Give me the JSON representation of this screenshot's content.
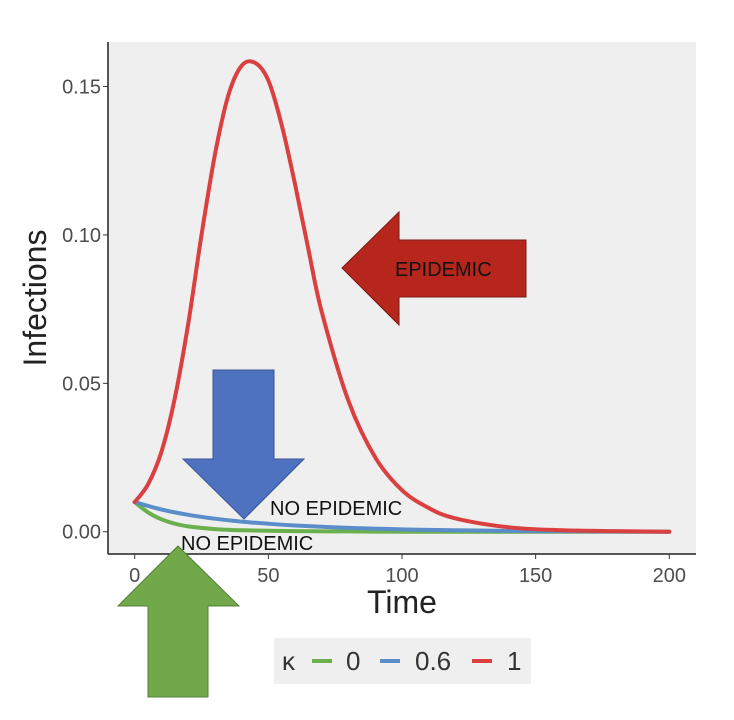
{
  "chart_data": {
    "type": "line",
    "title": "",
    "xlabel": "Time",
    "ylabel": "Infections",
    "xlim": [
      -10,
      210
    ],
    "ylim": [
      -0.0075,
      0.165
    ],
    "x_ticks": [
      0,
      50,
      100,
      150,
      200
    ],
    "x_tick_labels": [
      "0",
      "50",
      "100",
      "150",
      "200"
    ],
    "y_ticks": [
      0.0,
      0.05,
      0.1,
      0.15
    ],
    "y_tick_labels": [
      "0.00",
      "0.05",
      "0.10",
      "0.15"
    ],
    "grid": false,
    "legend": {
      "title": "κ",
      "position": "bottom"
    },
    "series": [
      {
        "name": "0",
        "color": "#6ab04c",
        "x": [
          0,
          5,
          10,
          15,
          20,
          30,
          40,
          60,
          80,
          100,
          150,
          200
        ],
        "y": [
          0.01,
          0.0065,
          0.0042,
          0.0027,
          0.0018,
          0.0009,
          0.0005,
          0.0002,
          0.0001,
          0.0,
          0.0,
          0.0
        ]
      },
      {
        "name": "0.6",
        "color": "#5b8ec9",
        "x": [
          0,
          10,
          20,
          30,
          40,
          50,
          60,
          80,
          100,
          120,
          150,
          200
        ],
        "y": [
          0.01,
          0.0075,
          0.0057,
          0.0044,
          0.0034,
          0.0027,
          0.0021,
          0.0013,
          0.0008,
          0.0005,
          0.0002,
          0.0
        ]
      },
      {
        "name": "1",
        "color": "#d9403f",
        "x": [
          0,
          5,
          10,
          15,
          20,
          25,
          30,
          35,
          40,
          45,
          50,
          55,
          60,
          65,
          70,
          80,
          90,
          100,
          110,
          120,
          140,
          160,
          180,
          200
        ],
        "y": [
          0.01,
          0.016,
          0.027,
          0.045,
          0.07,
          0.1,
          0.127,
          0.147,
          0.157,
          0.158,
          0.152,
          0.137,
          0.117,
          0.095,
          0.074,
          0.044,
          0.025,
          0.014,
          0.008,
          0.0045,
          0.0015,
          0.0005,
          0.0002,
          0.0
        ]
      }
    ],
    "annotations": [
      {
        "text": "EPIDEMIC",
        "color": "#b7261d"
      },
      {
        "text": "NO EPIDEMIC",
        "color": "#4f72c0"
      },
      {
        "text": "NO EPIDEMIC",
        "color": "#6fa84a"
      }
    ]
  }
}
